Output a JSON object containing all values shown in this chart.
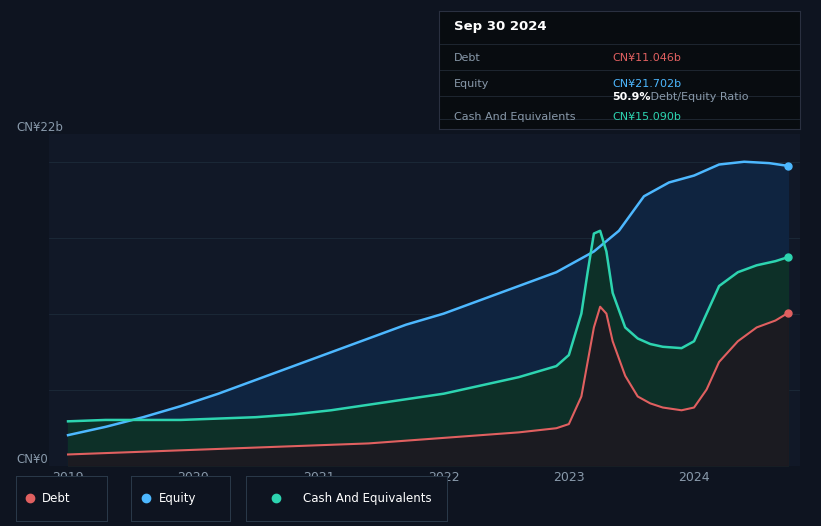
{
  "bg_color": "#0e1420",
  "plot_bg_color": "#111827",
  "ylabel_top": "CN¥22b",
  "ylabel_bottom": "CN¥0",
  "x_ticks": [
    2019,
    2020,
    2021,
    2022,
    2023,
    2024
  ],
  "equity_color": "#4db8ff",
  "debt_color": "#e06060",
  "cash_color": "#2dd4b0",
  "grid_color": "#1c2535",
  "equity_data_x": [
    2019.0,
    2019.3,
    2019.6,
    2019.9,
    2020.2,
    2020.5,
    2020.8,
    2021.1,
    2021.4,
    2021.7,
    2022.0,
    2022.3,
    2022.6,
    2022.9,
    2023.0,
    2023.2,
    2023.4,
    2023.6,
    2023.8,
    2024.0,
    2024.2,
    2024.4,
    2024.6,
    2024.75
  ],
  "equity_data_y": [
    2.2,
    2.8,
    3.5,
    4.3,
    5.2,
    6.2,
    7.2,
    8.2,
    9.2,
    10.2,
    11.0,
    12.0,
    13.0,
    14.0,
    14.5,
    15.5,
    17.0,
    19.5,
    20.5,
    21.0,
    21.8,
    22.0,
    21.9,
    21.702
  ],
  "debt_data_x": [
    2019.0,
    2019.3,
    2019.6,
    2019.9,
    2020.2,
    2020.5,
    2020.8,
    2021.1,
    2021.4,
    2021.7,
    2022.0,
    2022.3,
    2022.6,
    2022.9,
    2023.0,
    2023.1,
    2023.15,
    2023.2,
    2023.25,
    2023.3,
    2023.35,
    2023.45,
    2023.55,
    2023.65,
    2023.75,
    2023.9,
    2024.0,
    2024.1,
    2024.2,
    2024.35,
    2024.5,
    2024.65,
    2024.75
  ],
  "debt_data_y": [
    0.8,
    0.9,
    1.0,
    1.1,
    1.2,
    1.3,
    1.4,
    1.5,
    1.6,
    1.8,
    2.0,
    2.2,
    2.4,
    2.7,
    3.0,
    5.0,
    7.5,
    10.0,
    11.5,
    11.0,
    9.0,
    6.5,
    5.0,
    4.5,
    4.2,
    4.0,
    4.2,
    5.5,
    7.5,
    9.0,
    10.0,
    10.5,
    11.046
  ],
  "cash_data_x": [
    2019.0,
    2019.3,
    2019.6,
    2019.9,
    2020.2,
    2020.5,
    2020.8,
    2021.1,
    2021.4,
    2021.7,
    2022.0,
    2022.3,
    2022.6,
    2022.9,
    2023.0,
    2023.1,
    2023.15,
    2023.2,
    2023.25,
    2023.3,
    2023.35,
    2023.45,
    2023.55,
    2023.65,
    2023.75,
    2023.9,
    2024.0,
    2024.1,
    2024.2,
    2024.35,
    2024.5,
    2024.65,
    2024.75
  ],
  "cash_data_y": [
    3.2,
    3.3,
    3.3,
    3.3,
    3.4,
    3.5,
    3.7,
    4.0,
    4.4,
    4.8,
    5.2,
    5.8,
    6.4,
    7.2,
    8.0,
    11.0,
    14.0,
    16.8,
    17.0,
    15.5,
    12.5,
    10.0,
    9.2,
    8.8,
    8.6,
    8.5,
    9.0,
    11.0,
    13.0,
    14.0,
    14.5,
    14.8,
    15.09
  ],
  "info_title": "Sep 30 2024",
  "info_rows": [
    {
      "label": "Debt",
      "value": "CN¥11.046b",
      "value_color": "#e06060",
      "ratio": ""
    },
    {
      "label": "Equity",
      "value": "CN¥21.702b",
      "value_color": "#4db8ff",
      "ratio": "50.9% Debt/Equity Ratio"
    },
    {
      "label": "Cash And Equivalents",
      "value": "CN¥15.090b",
      "value_color": "#2dd4b0",
      "ratio": ""
    }
  ],
  "legend_items": [
    {
      "label": "Debt",
      "color": "#e06060"
    },
    {
      "label": "Equity",
      "color": "#4db8ff"
    },
    {
      "label": "Cash And Equivalents",
      "color": "#2dd4b0"
    }
  ]
}
